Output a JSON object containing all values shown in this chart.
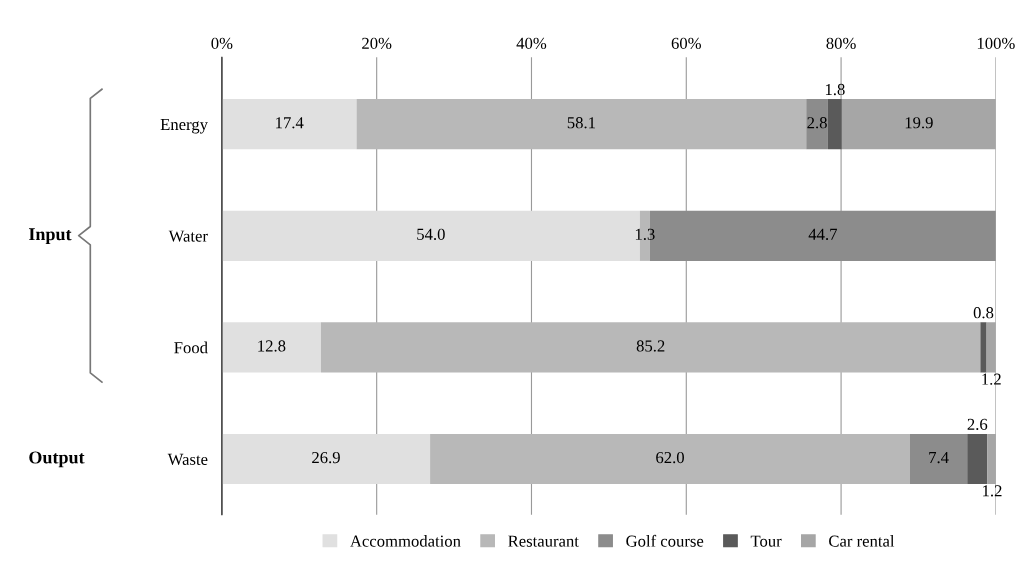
{
  "chart_data": {
    "type": "bar",
    "orientation": "horizontal",
    "stacked": true,
    "categories": [
      "Energy",
      "Water",
      "Food",
      "Waste"
    ],
    "series": [
      {
        "name": "Accommodation",
        "color": "#e0e0e0",
        "values": [
          17.4,
          54.0,
          12.8,
          26.9
        ],
        "value_labels": [
          "17.4",
          "54.0",
          "12.8",
          "26.9"
        ]
      },
      {
        "name": "Restaurant",
        "color": "#b8b8b8",
        "values": [
          58.1,
          1.3,
          85.2,
          62.0
        ],
        "value_labels": [
          "58.1",
          "1.3",
          "85.2",
          "62.0"
        ]
      },
      {
        "name": "Golf course",
        "color": "#8c8c8c",
        "values": [
          2.8,
          44.7,
          null,
          7.4
        ],
        "value_labels": [
          "2.8",
          "44.7",
          null,
          "7.4"
        ]
      },
      {
        "name": "Tour",
        "color": "#5a5a5a",
        "values": [
          1.8,
          null,
          0.8,
          2.6
        ],
        "value_labels": [
          "1.8",
          null,
          "0.8",
          "2.6"
        ]
      },
      {
        "name": "Car rental",
        "color": "#a6a6a6",
        "values": [
          19.9,
          null,
          1.2,
          1.2
        ],
        "value_labels": [
          "19.9",
          null,
          "1.2",
          "1.2"
        ]
      }
    ],
    "xlim": [
      0,
      100
    ],
    "xticks": [
      {
        "value": 0,
        "label": "0%"
      },
      {
        "value": 20,
        "label": "20%"
      },
      {
        "value": 40,
        "label": "40%"
      },
      {
        "value": 60,
        "label": "60%"
      },
      {
        "value": 80,
        "label": "80%"
      },
      {
        "value": 100,
        "label": "100%"
      }
    ],
    "grid": "x",
    "legend": "bottom",
    "annotations": [
      "Input",
      "Output"
    ]
  }
}
